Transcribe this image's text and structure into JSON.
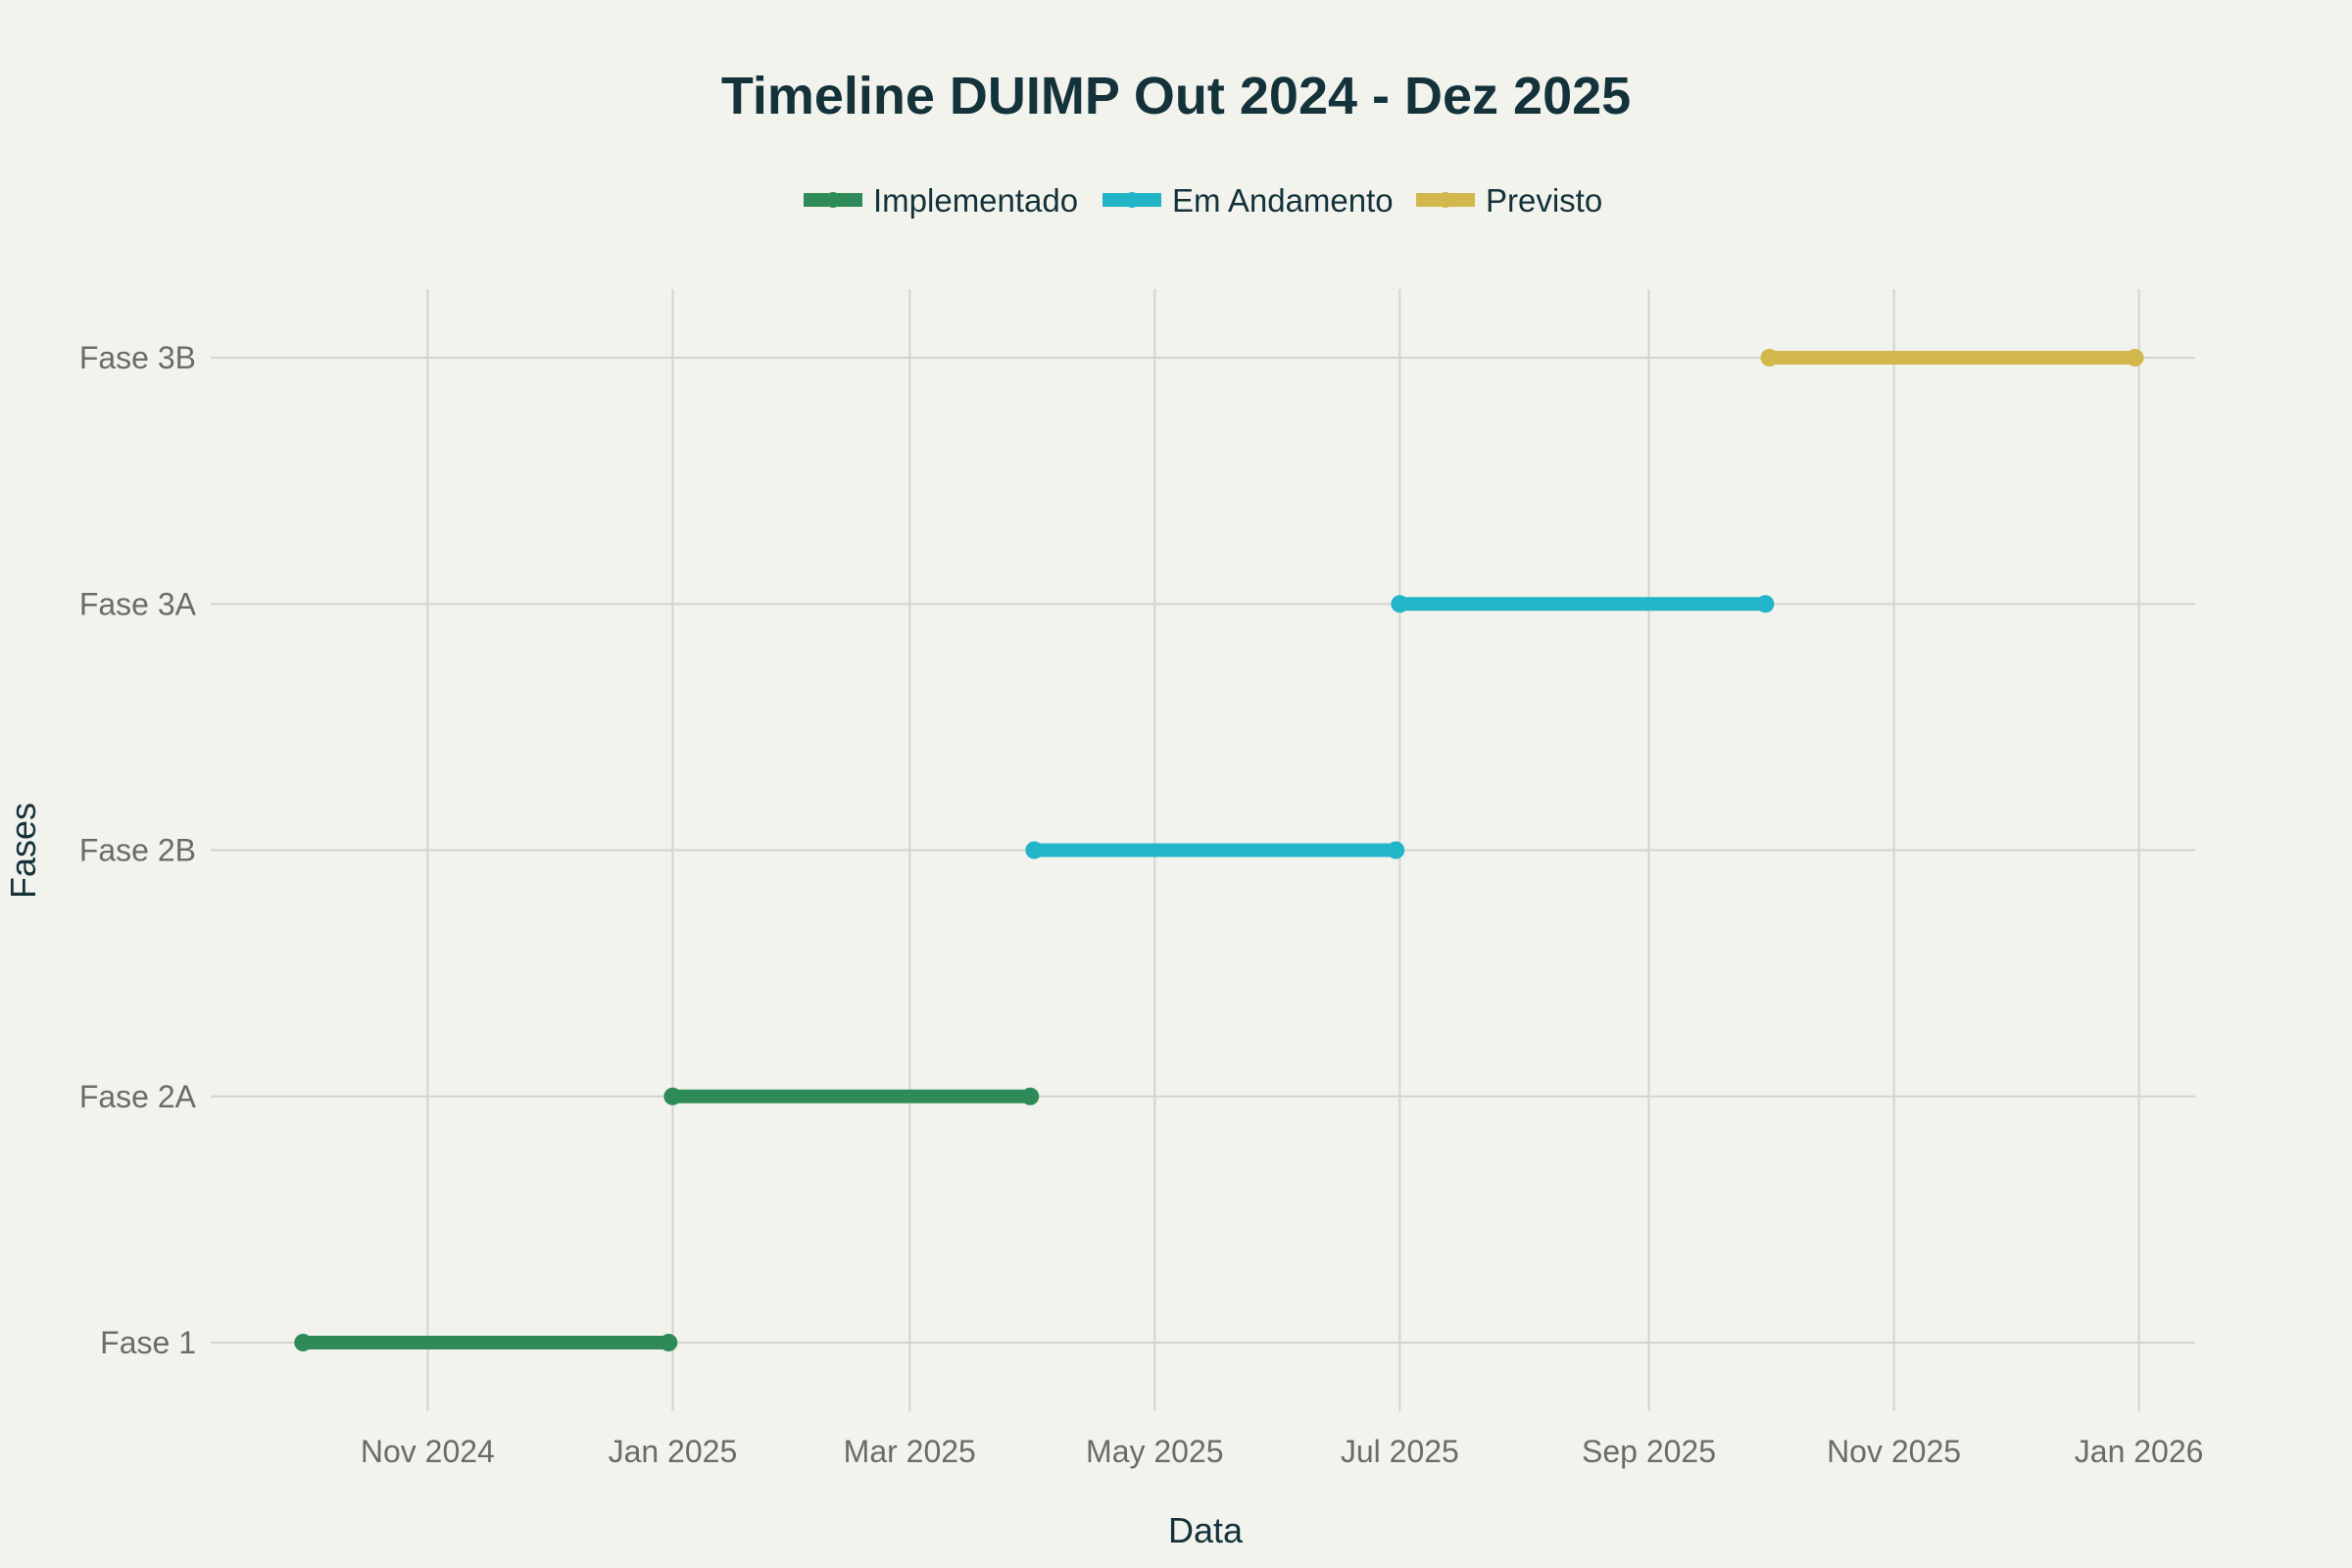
{
  "chart_data": {
    "type": "timeline",
    "title": "Timeline DUIMP Out 2024 - Dez 2025",
    "xlabel": "Data",
    "ylabel": "Fases",
    "categories": [
      "Fase 1",
      "Fase 2A",
      "Fase 2B",
      "Fase 3A",
      "Fase 3B"
    ],
    "xlim": [
      "2024-09-08",
      "2026-01-15"
    ],
    "x_ticks": [
      {
        "date": "2024-11-01",
        "label": "Nov 2024"
      },
      {
        "date": "2025-01-01",
        "label": "Jan 2025"
      },
      {
        "date": "2025-03-01",
        "label": "Mar 2025"
      },
      {
        "date": "2025-05-01",
        "label": "May 2025"
      },
      {
        "date": "2025-07-01",
        "label": "Jul 2025"
      },
      {
        "date": "2025-09-01",
        "label": "Sep 2025"
      },
      {
        "date": "2025-11-01",
        "label": "Nov 2025"
      },
      {
        "date": "2026-01-01",
        "label": "Jan 2026"
      }
    ],
    "grid": true,
    "legend_position": "top",
    "series": [
      {
        "name": "Implementado",
        "color": "#2e8b57",
        "segments": [
          {
            "phase": "Fase 1",
            "start": "2024-10-01",
            "end": "2024-12-31"
          },
          {
            "phase": "Fase 2A",
            "start": "2025-01-01",
            "end": "2025-03-31"
          }
        ]
      },
      {
        "name": "Em Andamento",
        "color": "#22b5c8",
        "segments": [
          {
            "phase": "Fase 2B",
            "start": "2025-04-01",
            "end": "2025-06-30"
          },
          {
            "phase": "Fase 3A",
            "start": "2025-07-01",
            "end": "2025-09-30"
          }
        ]
      },
      {
        "name": "Previsto",
        "color": "#d2b74c",
        "segments": [
          {
            "phase": "Fase 3B",
            "start": "2025-10-01",
            "end": "2025-12-31"
          }
        ]
      }
    ]
  }
}
